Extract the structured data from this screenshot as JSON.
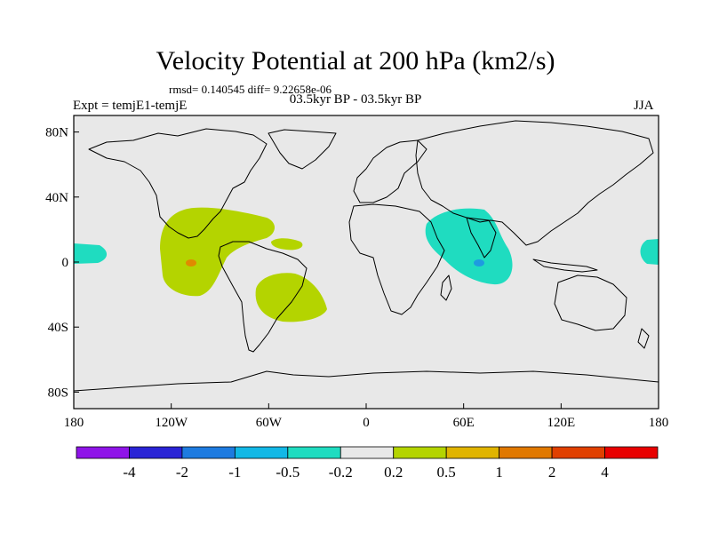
{
  "title": "Velocity Potential at 200 hPa (km2/s)",
  "stats": "rmsd= 0.140545 diff= 9.22658e-06",
  "left_label": "Expt = temjE1-temjE",
  "center_label": "03.5kyr BP - 03.5kyr BP",
  "right_label": "JJA",
  "y_ticks": [
    {
      "label": "80N",
      "lat": 80
    },
    {
      "label": "40N",
      "lat": 40
    },
    {
      "label": "0",
      "lat": 0
    },
    {
      "label": "40S",
      "lat": -40
    },
    {
      "label": "80S",
      "lat": -80
    }
  ],
  "x_ticks": [
    {
      "label": "180",
      "lon": -180
    },
    {
      "label": "120W",
      "lon": -120
    },
    {
      "label": "60W",
      "lon": -60
    },
    {
      "label": "0",
      "lon": 0
    },
    {
      "label": "60E",
      "lon": 60
    },
    {
      "label": "120E",
      "lon": 120
    },
    {
      "label": "180",
      "lon": 180
    }
  ],
  "colorbar": {
    "labels": [
      "-4",
      "-2",
      "-1",
      "-0.5",
      "-0.2",
      "0.2",
      "0.5",
      "1",
      "2",
      "4"
    ],
    "colors": [
      "#8f14e8",
      "#2a24d6",
      "#1e7be0",
      "#12b8e6",
      "#1fdcc0",
      "#e8e8e8",
      "#b4d400",
      "#e0b400",
      "#e07800",
      "#e04000",
      "#e80000"
    ]
  },
  "colors": {
    "background": "#e8e8e8",
    "positive_light": "#b4d400",
    "negative_light": "#1fdcc0",
    "positive_core": "#e08a00",
    "negative_core": "#1e9be0"
  }
}
